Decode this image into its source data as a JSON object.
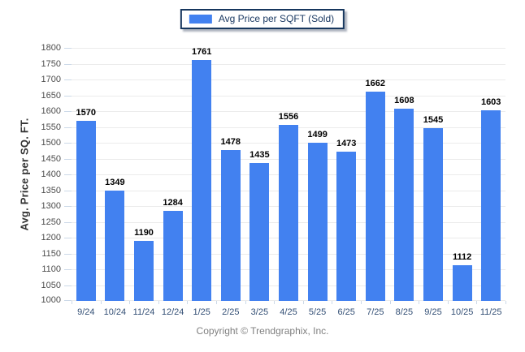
{
  "legend": {
    "label": "Avg Price per SQFT (Sold)"
  },
  "y_axis": {
    "title": "Avg. Price per SQ. FT."
  },
  "footer": {
    "copyright": "Copyright © Trendgraphix, Inc."
  },
  "chart_data": {
    "type": "bar",
    "title": "",
    "xlabel": "",
    "ylabel": "Avg. Price per SQ. FT.",
    "legend_entries": [
      "Avg Price per SQFT (Sold)"
    ],
    "legend_position": "top-center",
    "categories": [
      "9/24",
      "10/24",
      "11/24",
      "12/24",
      "1/25",
      "2/25",
      "3/25",
      "4/25",
      "5/25",
      "6/25",
      "7/25",
      "8/25",
      "9/25",
      "10/25",
      "11/25"
    ],
    "values": [
      1570,
      1349,
      1190,
      1284,
      1761,
      1478,
      1435,
      1556,
      1499,
      1473,
      1662,
      1608,
      1545,
      1112,
      1603
    ],
    "ylim": [
      1000,
      1800
    ],
    "ytick_step": 50,
    "ytick_labels": [
      "1000",
      "1050",
      "1100",
      "1150",
      "1200",
      "1250",
      "1300",
      "1350",
      "1400",
      "1450",
      "1500",
      "1550",
      "1600",
      "1650",
      "1700",
      "1750",
      "1800"
    ],
    "grid": "horizontal",
    "data_labels": true,
    "colors": {
      "bar": "#4281F0",
      "gridline": "#ebebeb",
      "tick": "#ccd9e8",
      "ytick_text": "#4d4d4d",
      "xtick_text": "#334f75",
      "value_label": "#000000",
      "legend_border": "#17375e",
      "legend_text": "#1b3a63",
      "footer_text": "#808080",
      "background": "#ffffff"
    }
  }
}
